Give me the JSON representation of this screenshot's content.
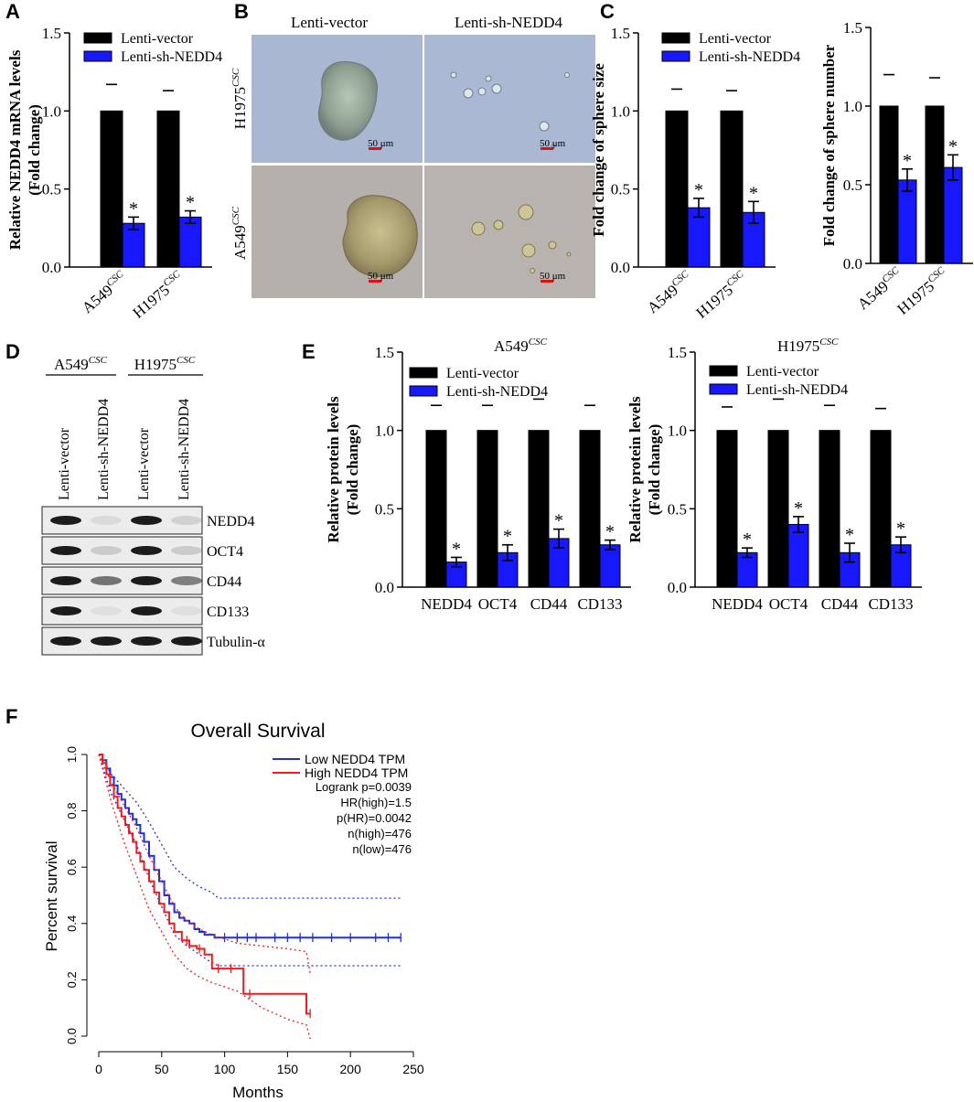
{
  "colors": {
    "ctrl": "#000000",
    "kd": "#1818ff",
    "low": "#1f2fe0",
    "high": "#ee1c1c"
  },
  "panels": {
    "A": {
      "letter": "A"
    },
    "B": {
      "letter": "B",
      "col_headers": [
        "Lenti-vector",
        "Lenti-sh-NEDD4"
      ],
      "row_labels": [
        {
          "main": "H1975",
          "sup": "CSC"
        },
        {
          "main": "A549",
          "sup": "CSC"
        }
      ],
      "scale_bar": "50 μm"
    },
    "C": {
      "letter": "C"
    },
    "D": {
      "letter": "D",
      "group_headers": [
        {
          "main": "A549",
          "sup": "CSC"
        },
        {
          "main": "H1975",
          "sup": "CSC"
        }
      ],
      "lane_labels": [
        "Lenti-vector",
        "Lenti-sh-NEDD4",
        "Lenti-vector",
        "Lenti-sh-NEDD4"
      ],
      "bands": [
        "NEDD4",
        "OCT4",
        "CD44",
        "CD133",
        "Tubulin-α"
      ]
    },
    "E": {
      "letter": "E"
    },
    "F": {
      "letter": "F"
    }
  },
  "chart_data": [
    {
      "id": "A",
      "type": "bar",
      "ylabel": "Relative NEDD4 mRNA levels (Fold change)",
      "ylabel_lines": [
        "Relative NEDD4 mRNA levels",
        "(Fold change)"
      ],
      "yticks": [
        "0.0",
        "0.5",
        "1.0",
        "1.5"
      ],
      "ylim": [
        0,
        1.5
      ],
      "categories": [
        {
          "main": "A549",
          "sup": "CSC"
        },
        {
          "main": "H1975",
          "sup": "CSC"
        }
      ],
      "legend": [
        "Lenti-vector",
        "Lenti-sh-NEDD4"
      ],
      "series": [
        {
          "name": "Lenti-vector",
          "values": [
            1.0,
            1.0
          ],
          "err": [
            0.17,
            0.13
          ]
        },
        {
          "name": "Lenti-sh-NEDD4",
          "values": [
            0.28,
            0.32
          ],
          "err": [
            0.04,
            0.04
          ],
          "sig": [
            "*",
            "*"
          ]
        }
      ]
    },
    {
      "id": "C1",
      "type": "bar",
      "ylabel": "Fold change of sphere size",
      "ylabel_lines": [
        "Fold change of sphere size"
      ],
      "yticks": [
        "0.0",
        "0.5",
        "1.0",
        "1.5"
      ],
      "ylim": [
        0,
        1.5
      ],
      "categories": [
        {
          "main": "A549",
          "sup": "CSC"
        },
        {
          "main": "H1975",
          "sup": "CSC"
        }
      ],
      "legend": [
        "Lenti-vector",
        "Lenti-sh-NEDD4"
      ],
      "series": [
        {
          "name": "Lenti-vector",
          "values": [
            1.0,
            1.0
          ],
          "err": [
            0.14,
            0.13
          ]
        },
        {
          "name": "Lenti-sh-NEDD4",
          "values": [
            0.38,
            0.35
          ],
          "err": [
            0.06,
            0.07
          ],
          "sig": [
            "*",
            "*"
          ]
        }
      ]
    },
    {
      "id": "C2",
      "type": "bar",
      "ylabel": "Fold change of sphere number",
      "ylabel_lines": [
        "Fold change of sphere number"
      ],
      "yticks": [
        "0.0",
        "0.5",
        "1.0",
        "1.5"
      ],
      "ylim": [
        0,
        1.5
      ],
      "categories": [
        {
          "main": "A549",
          "sup": "CSC"
        },
        {
          "main": "H1975",
          "sup": "CSC"
        }
      ],
      "series": [
        {
          "name": "Lenti-vector",
          "values": [
            1.0,
            1.0
          ],
          "err": [
            0.2,
            0.18
          ]
        },
        {
          "name": "Lenti-sh-NEDD4",
          "values": [
            0.53,
            0.61
          ],
          "err": [
            0.07,
            0.08
          ],
          "sig": [
            "*",
            "*"
          ]
        }
      ]
    },
    {
      "id": "E1",
      "type": "bar",
      "title": {
        "main": "A549",
        "sup": "CSC"
      },
      "ylabel": "Relative protein levels (Fold change)",
      "ylabel_lines": [
        "Relative protein levels",
        "(Fold change)"
      ],
      "yticks": [
        "0.0",
        "0.5",
        "1.0",
        "1.5"
      ],
      "ylim": [
        0,
        1.5
      ],
      "categories": [
        "NEDD4",
        "OCT4",
        "CD44",
        "CD133"
      ],
      "legend": [
        "Lenti-vector",
        "Lenti-sh-NEDD4"
      ],
      "series": [
        {
          "name": "Lenti-vector",
          "values": [
            1.0,
            1.0,
            1.0,
            1.0
          ],
          "err": [
            0.16,
            0.16,
            0.2,
            0.16
          ]
        },
        {
          "name": "Lenti-sh-NEDD4",
          "values": [
            0.16,
            0.22,
            0.31,
            0.27
          ],
          "err": [
            0.03,
            0.05,
            0.06,
            0.03
          ],
          "sig": [
            "*",
            "*",
            "*",
            "*"
          ]
        }
      ]
    },
    {
      "id": "E2",
      "type": "bar",
      "title": {
        "main": "H1975",
        "sup": "CSC"
      },
      "ylabel": "Relative protein levels (Fold change)",
      "ylabel_lines": [
        "Relative protein levels",
        "(Fold change)"
      ],
      "yticks": [
        "0.0",
        "0.5",
        "1.0",
        "1.5"
      ],
      "ylim": [
        0,
        1.5
      ],
      "categories": [
        "NEDD4",
        "OCT4",
        "CD44",
        "CD133"
      ],
      "legend": [
        "Lenti-vector",
        "Lenti-sh-NEDD4"
      ],
      "series": [
        {
          "name": "Lenti-vector",
          "values": [
            1.0,
            1.0,
            1.0,
            1.0
          ],
          "err": [
            0.15,
            0.2,
            0.16,
            0.14
          ]
        },
        {
          "name": "Lenti-sh-NEDD4",
          "values": [
            0.22,
            0.4,
            0.22,
            0.27
          ],
          "err": [
            0.03,
            0.05,
            0.06,
            0.05
          ],
          "sig": [
            "*",
            "*",
            "*",
            "*"
          ]
        }
      ]
    },
    {
      "id": "F",
      "type": "line",
      "title": "Overall Survival",
      "xlabel": "Months",
      "ylabel": "Percent survival",
      "xlim": [
        0,
        250
      ],
      "ylim": [
        0,
        1.0
      ],
      "xticks": [
        "0",
        "50",
        "100",
        "150",
        "200",
        "250"
      ],
      "yticks": [
        "0.0",
        "0.2",
        "0.4",
        "0.6",
        "0.8",
        "1.0"
      ],
      "legend": [
        "Low NEDD4 TPM",
        "High NEDD4 TPM"
      ],
      "annotations": [
        "Logrank p=0.0039",
        "HR(high)=1.5",
        "p(HR)=0.0042",
        "n(high)=476",
        "n(low)=476"
      ],
      "series": [
        {
          "name": "Low NEDD4 TPM",
          "x": [
            0,
            3,
            6,
            9,
            12,
            15,
            18,
            21,
            24,
            27,
            30,
            33,
            36,
            40,
            44,
            48,
            52,
            56,
            60,
            64,
            68,
            72,
            76,
            80,
            84,
            88,
            92,
            240
          ],
          "y": [
            1.0,
            0.98,
            0.95,
            0.92,
            0.89,
            0.86,
            0.84,
            0.81,
            0.79,
            0.77,
            0.75,
            0.72,
            0.69,
            0.64,
            0.59,
            0.55,
            0.5,
            0.47,
            0.44,
            0.42,
            0.41,
            0.4,
            0.38,
            0.37,
            0.36,
            0.36,
            0.35,
            0.35
          ],
          "upper": [
            [
              0,
              1.0
            ],
            [
              10,
              0.93
            ],
            [
              20,
              0.88
            ],
            [
              30,
              0.83
            ],
            [
              40,
              0.76
            ],
            [
              50,
              0.68
            ],
            [
              60,
              0.6
            ],
            [
              70,
              0.56
            ],
            [
              80,
              0.53
            ],
            [
              90,
              0.51
            ],
            [
              95,
              0.49
            ],
            [
              240,
              0.49
            ]
          ],
          "lower": [
            [
              0,
              1.0
            ],
            [
              10,
              0.86
            ],
            [
              20,
              0.77
            ],
            [
              30,
              0.68
            ],
            [
              40,
              0.56
            ],
            [
              50,
              0.46
            ],
            [
              60,
              0.36
            ],
            [
              70,
              0.32
            ],
            [
              80,
              0.29
            ],
            [
              90,
              0.26
            ],
            [
              95,
              0.25
            ],
            [
              240,
              0.25
            ]
          ]
        },
        {
          "name": "High NEDD4 TPM",
          "x": [
            0,
            3,
            6,
            9,
            12,
            15,
            18,
            21,
            24,
            27,
            30,
            33,
            36,
            40,
            44,
            48,
            52,
            56,
            60,
            66,
            72,
            78,
            84,
            90,
            100,
            108,
            115,
            140,
            160,
            165,
            168
          ],
          "y": [
            1.0,
            0.97,
            0.93,
            0.89,
            0.85,
            0.81,
            0.78,
            0.75,
            0.72,
            0.69,
            0.65,
            0.62,
            0.59,
            0.55,
            0.51,
            0.47,
            0.44,
            0.4,
            0.37,
            0.34,
            0.32,
            0.31,
            0.29,
            0.24,
            0.24,
            0.24,
            0.15,
            0.15,
            0.15,
            0.08,
            0.08
          ],
          "upper": [
            [
              0,
              1.0
            ],
            [
              10,
              0.9
            ],
            [
              20,
              0.82
            ],
            [
              30,
              0.74
            ],
            [
              40,
              0.64
            ],
            [
              50,
              0.55
            ],
            [
              60,
              0.46
            ],
            [
              70,
              0.41
            ],
            [
              80,
              0.38
            ],
            [
              90,
              0.36
            ],
            [
              110,
              0.33
            ],
            [
              130,
              0.32
            ],
            [
              150,
              0.31
            ],
            [
              165,
              0.3
            ],
            [
              168,
              0.22
            ]
          ],
          "lower": [
            [
              0,
              1.0
            ],
            [
              10,
              0.83
            ],
            [
              20,
              0.69
            ],
            [
              30,
              0.57
            ],
            [
              40,
              0.45
            ],
            [
              50,
              0.37
            ],
            [
              60,
              0.29
            ],
            [
              70,
              0.24
            ],
            [
              80,
              0.21
            ],
            [
              90,
              0.19
            ],
            [
              110,
              0.16
            ],
            [
              130,
              0.1
            ],
            [
              150,
              0.06
            ],
            [
              165,
              0.04
            ],
            [
              168,
              -0.01
            ]
          ]
        }
      ]
    }
  ]
}
